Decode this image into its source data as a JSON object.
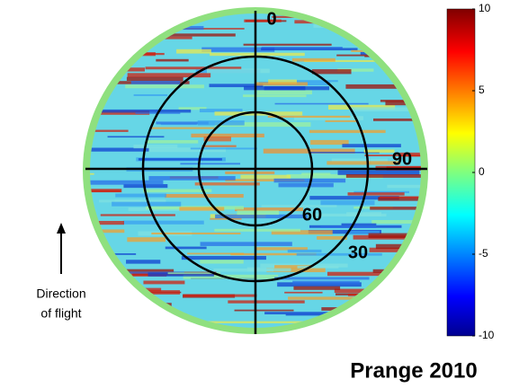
{
  "chart_data": {
    "type": "polar-heatmap",
    "colormap": "jet",
    "clim": [
      -10,
      10
    ],
    "cticks": [
      10,
      5,
      0,
      -5,
      -10
    ],
    "angle_labels": [
      0,
      90,
      60,
      30
    ],
    "direction_label": [
      "Direction",
      "of flight"
    ],
    "credit": "Prange 2010"
  }
}
